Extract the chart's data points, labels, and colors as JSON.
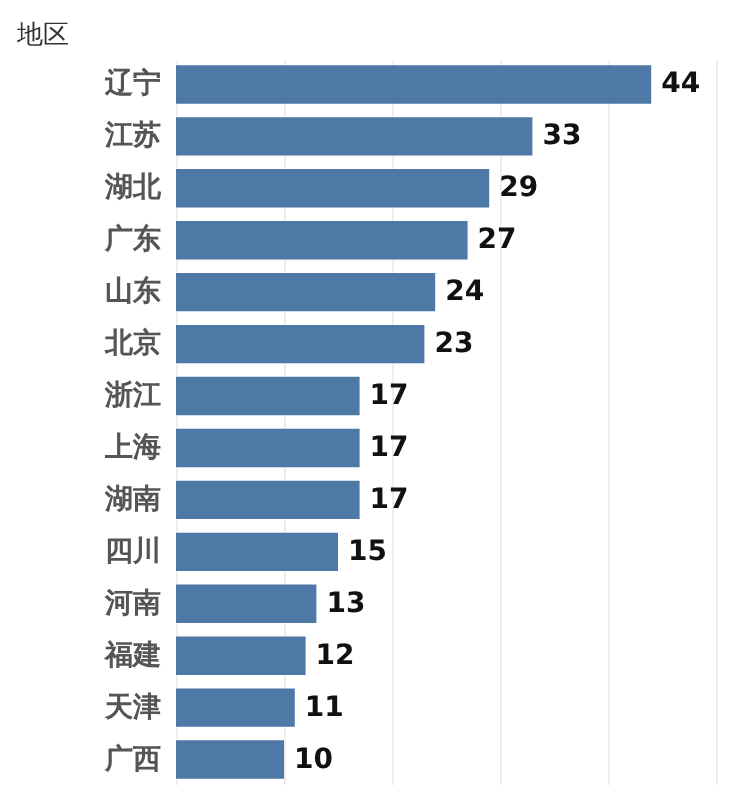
{
  "chart_data": {
    "type": "bar",
    "orientation": "horizontal",
    "ylabel": "地区",
    "categories": [
      "辽宁",
      "江苏",
      "湖北",
      "广东",
      "山东",
      "北京",
      "浙江",
      "上海",
      "湖南",
      "四川",
      "河南",
      "福建",
      "天津",
      "广西"
    ],
    "values": [
      44,
      33,
      29,
      27,
      24,
      23,
      17,
      17,
      17,
      15,
      13,
      12,
      11,
      10
    ],
    "color": "#4e79a7",
    "data_labels": true,
    "xlim": [
      0,
      50
    ],
    "xticks": [
      {
        "value": 0,
        "label": null
      },
      {
        "value": 10,
        "label": null
      },
      {
        "value": 20,
        "label": null
      },
      {
        "value": 30,
        "label": null
      },
      {
        "value": 40,
        "label": null
      },
      {
        "value": 50,
        "label": null
      }
    ],
    "grid": "x",
    "tick_labels": "y"
  }
}
